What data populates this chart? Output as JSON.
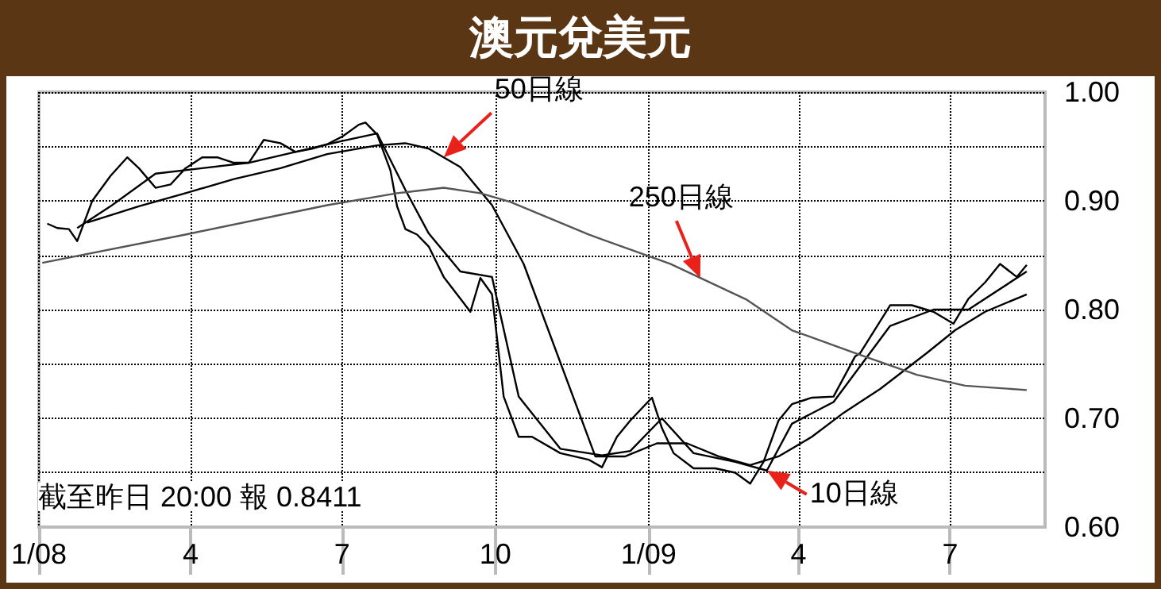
{
  "chart_data": {
    "type": "line",
    "title": "澳元兌美元",
    "annotations": [
      {
        "text": "50日線",
        "x": "2008-08-31",
        "y": 0.94
      },
      {
        "text": "250日線",
        "x": "2009-02-01",
        "y": 0.829
      },
      {
        "text": "10日線",
        "x": "2009-03-13",
        "y": 0.652
      },
      "截至昨日 20:00 報 0.8411"
    ],
    "xlim": [
      "2008-01-01",
      "2009-08-27"
    ],
    "xticks": [
      {
        "value": "2008-01-01",
        "label": "1/08"
      },
      {
        "value": "2008-04-01",
        "label": "4"
      },
      {
        "value": "2008-07-01",
        "label": "7"
      },
      {
        "value": "2008-10-01",
        "label": "10"
      },
      {
        "value": "2009-01-01",
        "label": "1/09"
      },
      {
        "value": "2009-04-01",
        "label": "4"
      },
      {
        "value": "2009-07-01",
        "label": "7"
      }
    ],
    "ylim": [
      0.6,
      1.0
    ],
    "yticks": [
      {
        "value": 0.6,
        "label": "0.60"
      },
      {
        "value": 0.65,
        "label": null
      },
      {
        "value": 0.7,
        "label": "0.70"
      },
      {
        "value": 0.75,
        "label": null
      },
      {
        "value": 0.8,
        "label": "0.80"
      },
      {
        "value": 0.85,
        "label": null
      },
      {
        "value": 0.9,
        "label": "0.90"
      },
      {
        "value": 0.95,
        "label": null
      },
      {
        "value": 1.0,
        "label": "1.00"
      }
    ],
    "grid": true,
    "marker": "none",
    "line_style": "solid",
    "series": [
      {
        "color": "#000000",
        "x": [
          "2008-01-06",
          "2008-01-12",
          "2008-01-19",
          "2008-01-24",
          "2008-02-02",
          "2008-02-13",
          "2008-02-23",
          "2008-03-01",
          "2008-03-11",
          "2008-03-20",
          "2008-03-29",
          "2008-04-08",
          "2008-04-17",
          "2008-04-27",
          "2008-05-06",
          "2008-05-15",
          "2008-05-25",
          "2008-06-03",
          "2008-06-13",
          "2008-06-22",
          "2008-07-01",
          "2008-07-11",
          "2008-07-15",
          "2008-07-22",
          "2008-07-30",
          "2008-08-03",
          "2008-08-08",
          "2008-08-15",
          "2008-08-22",
          "2008-08-31",
          "2008-09-10",
          "2008-09-16",
          "2008-09-22",
          "2008-09-29",
          "2008-10-06",
          "2008-10-15",
          "2008-10-23",
          "2008-11-09",
          "2008-11-26",
          "2008-12-04",
          "2008-12-13",
          "2008-12-21",
          "2009-01-03",
          "2009-01-09",
          "2009-01-16",
          "2009-01-28",
          "2009-02-10",
          "2009-02-22",
          "2009-03-03",
          "2009-03-11",
          "2009-03-20",
          "2009-03-28",
          "2009-04-09",
          "2009-04-22",
          "2009-05-05",
          "2009-05-08",
          "2009-05-26",
          "2009-06-08",
          "2009-06-21",
          "2009-07-03",
          "2009-07-12",
          "2009-07-22",
          "2009-07-31",
          "2009-08-10",
          "2009-08-16"
        ],
        "values": [
          0.879,
          0.875,
          0.874,
          0.863,
          0.9,
          0.923,
          0.94,
          0.93,
          0.912,
          0.915,
          0.93,
          0.94,
          0.94,
          0.935,
          0.935,
          0.956,
          0.953,
          0.945,
          0.948,
          0.952,
          0.959,
          0.97,
          0.972,
          0.961,
          0.928,
          0.895,
          0.874,
          0.869,
          0.858,
          0.83,
          0.81,
          0.798,
          0.829,
          0.814,
          0.72,
          0.683,
          0.683,
          0.668,
          0.662,
          0.655,
          0.683,
          0.698,
          0.719,
          0.691,
          0.668,
          0.654,
          0.654,
          0.65,
          0.64,
          0.66,
          0.698,
          0.713,
          0.719,
          0.72,
          0.757,
          0.76,
          0.804,
          0.804,
          0.798,
          0.787,
          0.81,
          0.825,
          0.842,
          0.83,
          0.841
        ]
      },
      {
        "color": "#000000",
        "x": [
          "2008-01-24",
          "2008-02-13",
          "2008-03-11",
          "2008-04-08",
          "2008-05-06",
          "2008-06-03",
          "2008-07-01",
          "2008-07-22",
          "2008-08-08",
          "2008-08-22",
          "2008-09-10",
          "2008-09-29",
          "2008-10-15",
          "2008-11-09",
          "2008-12-04",
          "2008-12-21",
          "2009-01-09",
          "2009-01-28",
          "2009-02-22",
          "2009-03-13",
          "2009-03-28",
          "2009-04-22",
          "2009-05-26",
          "2009-06-21",
          "2009-07-12",
          "2009-08-16"
        ],
        "values": [
          0.875,
          0.895,
          0.925,
          0.93,
          0.935,
          0.945,
          0.955,
          0.962,
          0.91,
          0.87,
          0.835,
          0.83,
          0.72,
          0.672,
          0.666,
          0.67,
          0.7,
          0.668,
          0.66,
          0.652,
          0.695,
          0.715,
          0.785,
          0.8,
          0.8,
          0.835
        ]
      },
      {
        "color": "#000000",
        "x": [
          "2008-01-30",
          "2008-03-01",
          "2008-03-29",
          "2008-04-27",
          "2008-05-25",
          "2008-06-22",
          "2008-07-22",
          "2008-08-08",
          "2008-08-22",
          "2008-09-10",
          "2008-09-29",
          "2008-10-18",
          "2008-11-30",
          "2008-12-18",
          "2009-01-06",
          "2009-01-24",
          "2009-02-12",
          "2009-03-03",
          "2009-03-20",
          "2009-04-09",
          "2009-04-28",
          "2009-05-20",
          "2009-06-17",
          "2009-07-04",
          "2009-07-22",
          "2009-08-16"
        ],
        "values": [
          0.88,
          0.895,
          0.907,
          0.92,
          0.93,
          0.943,
          0.951,
          0.953,
          0.948,
          0.931,
          0.896,
          0.842,
          0.665,
          0.665,
          0.677,
          0.677,
          0.665,
          0.657,
          0.665,
          0.683,
          0.705,
          0.727,
          0.76,
          0.781,
          0.798,
          0.814
        ]
      },
      {
        "color": "#555555",
        "x": [
          "2008-01-03",
          "2008-03-29",
          "2008-06-22",
          "2008-08-03",
          "2008-08-31",
          "2008-09-22",
          "2008-10-10",
          "2008-11-26",
          "2009-01-14",
          "2009-03-01",
          "2009-03-28",
          "2009-05-05",
          "2009-06-11",
          "2009-07-10",
          "2009-08-16"
        ],
        "values": [
          0.843,
          0.869,
          0.896,
          0.907,
          0.912,
          0.907,
          0.899,
          0.869,
          0.842,
          0.809,
          0.781,
          0.76,
          0.74,
          0.73,
          0.726
        ]
      }
    ]
  }
}
